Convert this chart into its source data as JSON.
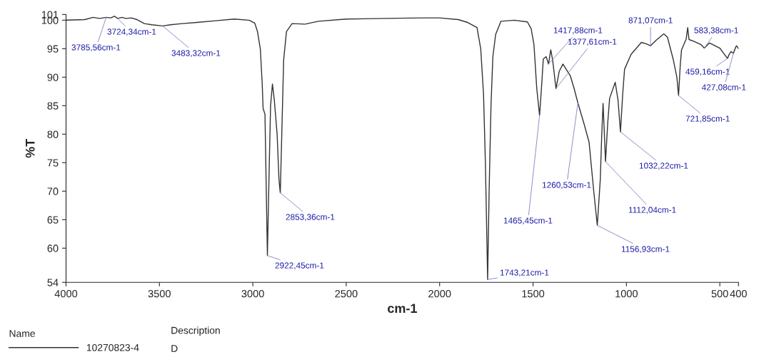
{
  "chart_data": {
    "type": "line",
    "xlabel": "cm-1",
    "ylabel": "%T",
    "xlim": [
      4000,
      400
    ],
    "xticks": [
      4000,
      3500,
      3000,
      2500,
      2000,
      1500,
      1000,
      500,
      400
    ],
    "ylim": [
      54,
      101
    ],
    "yticks": [
      54,
      60,
      65,
      70,
      75,
      80,
      85,
      90,
      95,
      100,
      101
    ],
    "grid": false,
    "legend": "bottom",
    "legend_title": "Name",
    "series": [
      {
        "name": "10270823-4",
        "color": "#333333",
        "x": [
          4000,
          3900,
          3855,
          3820,
          3785,
          3760,
          3740,
          3724,
          3700,
          3680,
          3650,
          3620,
          3580,
          3540,
          3483,
          3440,
          3380,
          3300,
          3200,
          3100,
          3020,
          2990,
          2975,
          2960,
          2950,
          2945,
          2935,
          2928,
          2922,
          2915,
          2905,
          2895,
          2885,
          2870,
          2860,
          2853,
          2845,
          2835,
          2820,
          2790,
          2720,
          2650,
          2500,
          2300,
          2100,
          2000,
          1900,
          1850,
          1800,
          1780,
          1765,
          1755,
          1743,
          1735,
          1725,
          1715,
          1700,
          1672,
          1600,
          1530,
          1510,
          1495,
          1480,
          1465,
          1455,
          1445,
          1430,
          1417,
          1405,
          1395,
          1377,
          1360,
          1340,
          1300,
          1280,
          1260,
          1225,
          1200,
          1175,
          1156,
          1140,
          1132,
          1125,
          1118,
          1112,
          1100,
          1090,
          1060,
          1045,
          1032,
          1020,
          1010,
          975,
          920,
          890,
          871,
          840,
          800,
          780,
          770,
          750,
          730,
          721,
          712,
          705,
          680,
          672,
          665,
          640,
          600,
          583,
          555,
          530,
          500,
          475,
          459,
          450,
          440,
          427,
          415,
          410,
          400
        ],
        "values": [
          100.0,
          100.1,
          100.5,
          100.3,
          100.5,
          100.4,
          100.7,
          100.3,
          100.5,
          100.3,
          100.4,
          100.1,
          99.4,
          99.2,
          99.0,
          99.2,
          99.4,
          99.6,
          99.9,
          100.2,
          100.0,
          99.5,
          98.0,
          95.0,
          89.0,
          84.5,
          83.5,
          70.0,
          58.7,
          70.0,
          85.0,
          88.8,
          86.0,
          80.0,
          72.0,
          69.7,
          80.0,
          93.0,
          98.0,
          99.4,
          99.3,
          99.8,
          100.2,
          100.3,
          100.4,
          100.4,
          100.1,
          99.6,
          98.7,
          95.0,
          87.0,
          75.0,
          54.5,
          70.0,
          85.0,
          93.6,
          97.5,
          99.8,
          100.0,
          99.7,
          98.5,
          95.7,
          88.0,
          83.3,
          88.0,
          93.2,
          93.6,
          92.3,
          94.8,
          93.0,
          88.0,
          91.0,
          92.3,
          90.2,
          88.0,
          85.5,
          81.6,
          78.6,
          70.0,
          64.0,
          72.0,
          80.0,
          85.4,
          80.0,
          75.2,
          82.0,
          86.3,
          89.1,
          86.0,
          80.4,
          87.0,
          91.4,
          94.0,
          96.1,
          95.8,
          95.5,
          96.5,
          97.6,
          97.0,
          95.7,
          93.2,
          90.0,
          86.8,
          92.0,
          94.8,
          96.7,
          98.7,
          96.6,
          96.3,
          95.7,
          95.1,
          96.0,
          95.6,
          95.1,
          94.0,
          93.3,
          94.0,
          94.5,
          94.2,
          95.3,
          95.5,
          95.0
        ]
      }
    ],
    "annotations": [
      {
        "text": "3785,56cm-1",
        "x": 3785,
        "y": 100.5
      },
      {
        "text": "3724,34cm-1",
        "x": 3724,
        "y": 100.3
      },
      {
        "text": "3483,32cm-1",
        "x": 3483,
        "y": 99.0
      },
      {
        "text": "2922,45cm-1",
        "x": 2922,
        "y": 58.7
      },
      {
        "text": "2853,36cm-1",
        "x": 2853,
        "y": 69.7
      },
      {
        "text": "1743,21cm-1",
        "x": 1743,
        "y": 54.5
      },
      {
        "text": "1465,45cm-1",
        "x": 1465,
        "y": 83.3
      },
      {
        "text": "1417,88cm-1",
        "x": 1417,
        "y": 92.3
      },
      {
        "text": "1377,61cm-1",
        "x": 1377,
        "y": 88.0
      },
      {
        "text": "1260,53cm-1",
        "x": 1260,
        "y": 85.5
      },
      {
        "text": "1156,93cm-1",
        "x": 1156,
        "y": 64.0
      },
      {
        "text": "1112,04cm-1",
        "x": 1112,
        "y": 75.2
      },
      {
        "text": "1032,22cm-1",
        "x": 1032,
        "y": 80.4
      },
      {
        "text": "871,07cm-1",
        "x": 871,
        "y": 95.5
      },
      {
        "text": "721,85cm-1",
        "x": 721,
        "y": 86.8
      },
      {
        "text": "583,38cm-1",
        "x": 583,
        "y": 95.1
      },
      {
        "text": "459,16cm-1",
        "x": 459,
        "y": 93.3
      },
      {
        "text": "427,08cm-1",
        "x": 427,
        "y": 94.2
      },
      "Description",
      "D"
    ]
  }
}
